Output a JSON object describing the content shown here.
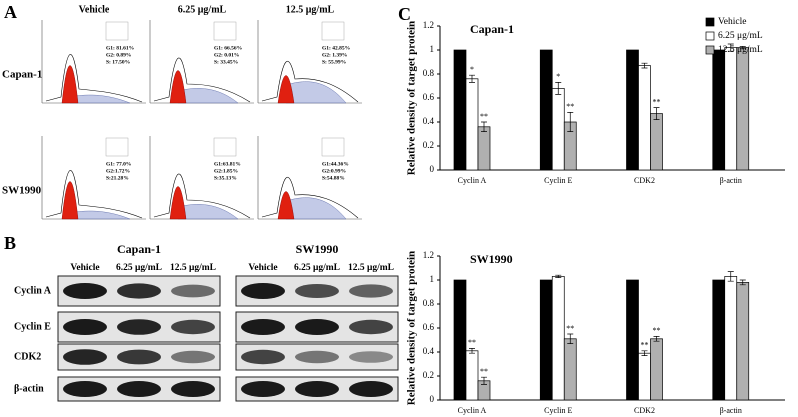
{
  "panel_a": {
    "label": "A",
    "columns": [
      "Vehicle",
      "6.25 μg/mL",
      "12.5 μg/mL"
    ],
    "rows": [
      {
        "name": "Capan-1",
        "plots": [
          [
            "G1: 81.61%",
            "G2: 0.89%",
            "S: 17.50%"
          ],
          [
            "G1: 66.56%",
            "G2: 0.01%",
            "S: 33.45%"
          ],
          [
            "G1: 42.85%",
            "G2: 1.39%",
            "S: 55.99%"
          ]
        ]
      },
      {
        "name": "SW1990",
        "plots": [
          [
            "G1: 77.0%",
            "G2:1.72%",
            "S:21.28%"
          ],
          [
            "G1:63.81%",
            "G2:1.85%",
            "S:35.13%"
          ],
          [
            "G1:44.36%",
            "G2:0.99%",
            "S:54.88%"
          ]
        ]
      }
    ]
  },
  "panel_b": {
    "label": "B",
    "proteins": [
      "Cyclin A",
      "Cyclin E",
      "CDK2",
      "β-actin"
    ],
    "groups": [
      {
        "name": "Capan-1",
        "lanes": [
          "Vehicle",
          "6.25 μg/mL",
          "12.5 μg/mL"
        ]
      },
      {
        "name": "SW1990",
        "lanes": [
          "Vehicle",
          "6.25 μg/mL",
          "12.5 μg/mL"
        ]
      }
    ]
  },
  "panel_c_label": "C",
  "chart_data": [
    {
      "type": "bar",
      "title": "Capan-1",
      "ylabel": "Relative density of target protein",
      "categories": [
        "Cyclin A",
        "Cyclin E",
        "CDK2",
        "β-actin"
      ],
      "series": [
        {
          "name": "Vehicle",
          "color": "#000000",
          "values": [
            1,
            1,
            1,
            1
          ]
        },
        {
          "name": "6.25 μg/mL",
          "color": "#ffffff",
          "values": [
            0.76,
            0.68,
            0.87,
            1.02
          ],
          "errors": [
            0.03,
            0.05,
            0.02,
            0.03
          ],
          "significance": [
            "*",
            "*",
            null,
            null
          ]
        },
        {
          "name": "12.5 μg/mL",
          "color": "#b0b0b0",
          "values": [
            0.36,
            0.4,
            0.47,
            1.02
          ],
          "errors": [
            0.04,
            0.08,
            0.05,
            0.01
          ],
          "significance": [
            "**",
            "**",
            "**",
            null
          ]
        }
      ],
      "ylim": [
        0,
        1.2
      ],
      "yticks": [
        0,
        0.2,
        0.4,
        0.6,
        0.8,
        1,
        1.2
      ],
      "legend": "upper right"
    },
    {
      "type": "bar",
      "title": "SW1990",
      "ylabel": "Relative density of target protein",
      "categories": [
        "Cyclin A",
        "Cyclin E",
        "CDK2",
        "β-actin"
      ],
      "series": [
        {
          "color": "#000000",
          "values": [
            1,
            1,
            1,
            1
          ]
        },
        {
          "color": "#ffffff",
          "values": [
            0.41,
            1.03,
            0.39,
            1.03
          ],
          "errors": [
            0.02,
            0.01,
            0.02,
            0.04
          ],
          "significance": [
            "**",
            null,
            "**",
            null
          ]
        },
        {
          "color": "#b0b0b0",
          "values": [
            0.16,
            0.51,
            0.51,
            0.98
          ],
          "errors": [
            0.03,
            0.04,
            0.02,
            0.02
          ],
          "significance": [
            "**",
            "**",
            "**",
            null
          ]
        }
      ],
      "ylim": [
        0,
        1.2
      ],
      "yticks": [
        0,
        0.2,
        0.4,
        0.6,
        0.8,
        1,
        1.2
      ]
    }
  ]
}
